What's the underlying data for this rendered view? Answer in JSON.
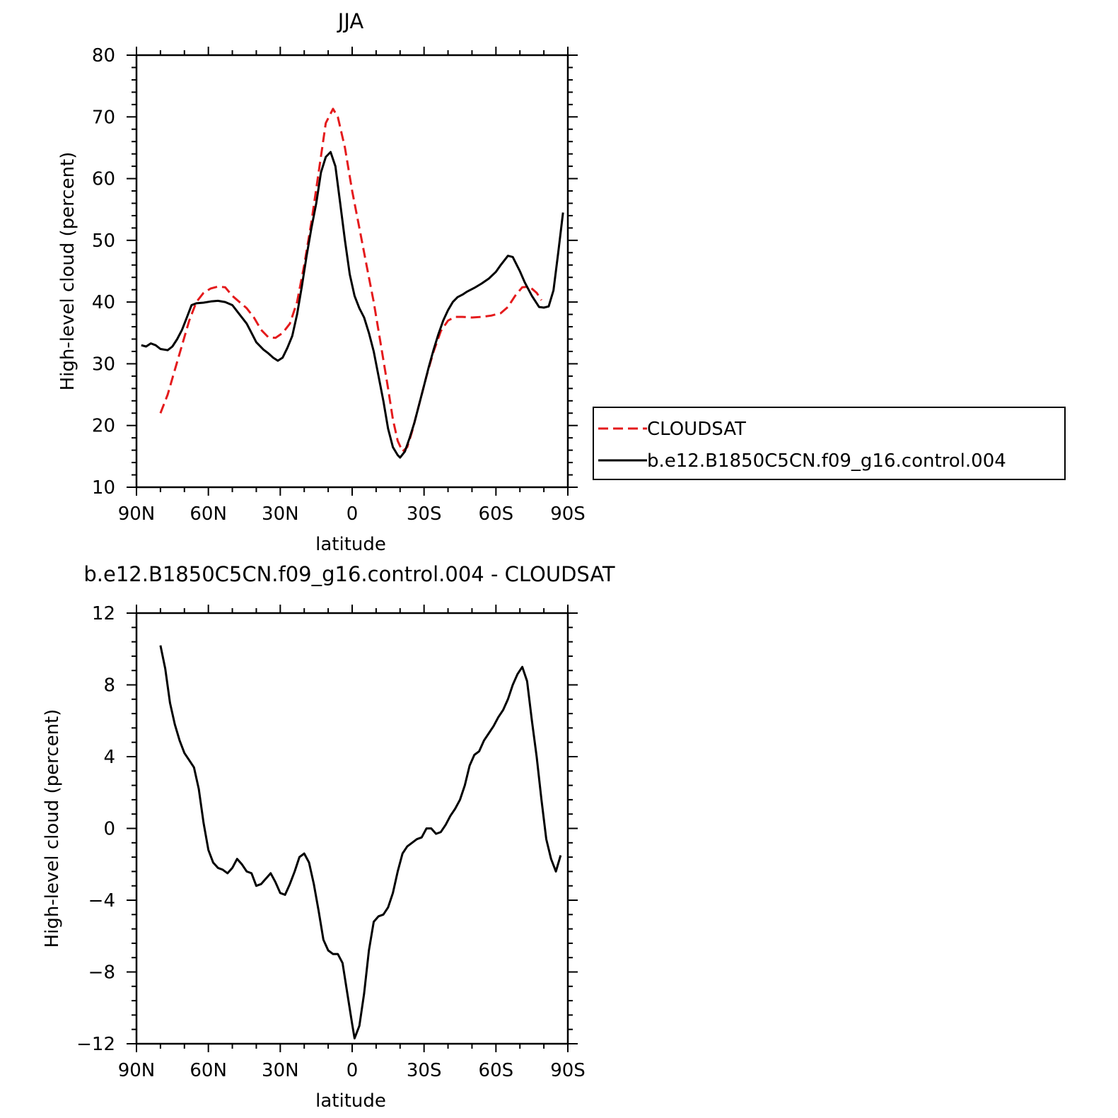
{
  "chart_data": [
    {
      "type": "line",
      "title": "JJA",
      "xlabel": "latitude",
      "ylabel": "High-level cloud (percent)",
      "xlim": [
        -90,
        90
      ],
      "ylim": [
        10,
        80
      ],
      "xticks": [
        {
          "value": -90,
          "label": "90N"
        },
        {
          "value": -60,
          "label": "60N"
        },
        {
          "value": -30,
          "label": "30N"
        },
        {
          "value": 0,
          "label": "0"
        },
        {
          "value": 30,
          "label": "30S"
        },
        {
          "value": 60,
          "label": "60S"
        },
        {
          "value": 90,
          "label": "90S"
        }
      ],
      "yticks": [
        10,
        20,
        30,
        40,
        50,
        60,
        70,
        80
      ],
      "legend_position": "right",
      "series": [
        {
          "name": "CLOUDSAT",
          "color": "#e41a1c",
          "dash": "dashed",
          "points": [
            [
              -80,
              22
            ],
            [
              -77,
              25
            ],
            [
              -74,
              29
            ],
            [
              -71,
              33
            ],
            [
              -68,
              37
            ],
            [
              -65,
              40
            ],
            [
              -62,
              41.5
            ],
            [
              -59,
              42.2
            ],
            [
              -56,
              42.5
            ],
            [
              -53,
              42.4
            ],
            [
              -50,
              41
            ],
            [
              -47,
              40
            ],
            [
              -44,
              39
            ],
            [
              -41,
              37.5
            ],
            [
              -38,
              35.5
            ],
            [
              -35,
              34.3
            ],
            [
              -32,
              34.2
            ],
            [
              -29,
              35
            ],
            [
              -26,
              36.5
            ],
            [
              -23,
              40
            ],
            [
              -20,
              46
            ],
            [
              -17,
              53
            ],
            [
              -14,
              61
            ],
            [
              -11,
              69
            ],
            [
              -8,
              71.3
            ],
            [
              -6,
              70
            ],
            [
              -3,
              65
            ],
            [
              0,
              58
            ],
            [
              3,
              52
            ],
            [
              6,
              46
            ],
            [
              9,
              40
            ],
            [
              12,
              33
            ],
            [
              15,
              26
            ],
            [
              17,
              21
            ],
            [
              19,
              17.5
            ],
            [
              21,
              15.8
            ],
            [
              23,
              16.5
            ],
            [
              25,
              19
            ],
            [
              28,
              23.5
            ],
            [
              31,
              28
            ],
            [
              34,
              32
            ],
            [
              37,
              35.3
            ],
            [
              40,
              37
            ],
            [
              43,
              37.6
            ],
            [
              46,
              37.6
            ],
            [
              50,
              37.5
            ],
            [
              54,
              37.6
            ],
            [
              58,
              37.8
            ],
            [
              62,
              38.2
            ],
            [
              65,
              39.2
            ],
            [
              68,
              41
            ],
            [
              71,
              42.4
            ],
            [
              74,
              42.5
            ],
            [
              77,
              41.5
            ],
            [
              79,
              40.3
            ]
          ]
        },
        {
          "name": "b.e12.B1850C5CN.f09_g16.control.004",
          "color": "#000000",
          "dash": "solid",
          "points": [
            [
              -88,
              33
            ],
            [
              -86,
              32.8
            ],
            [
              -84,
              33.3
            ],
            [
              -82,
              33
            ],
            [
              -80,
              32.4
            ],
            [
              -77,
              32.2
            ],
            [
              -75,
              32.8
            ],
            [
              -73,
              34
            ],
            [
              -71,
              35.5
            ],
            [
              -69,
              37.5
            ],
            [
              -67,
              39.5
            ],
            [
              -65,
              39.8
            ],
            [
              -62,
              39.9
            ],
            [
              -59,
              40.1
            ],
            [
              -56,
              40.2
            ],
            [
              -53,
              40
            ],
            [
              -50,
              39.5
            ],
            [
              -47,
              38
            ],
            [
              -44,
              36.5
            ],
            [
              -42,
              35
            ],
            [
              -40,
              33.5
            ],
            [
              -37,
              32.3
            ],
            [
              -35,
              31.7
            ],
            [
              -33,
              31
            ],
            [
              -31,
              30.5
            ],
            [
              -29,
              31
            ],
            [
              -27,
              32.6
            ],
            [
              -25,
              34.5
            ],
            [
              -23,
              38
            ],
            [
              -21,
              42.5
            ],
            [
              -19,
              47.5
            ],
            [
              -17,
              52
            ],
            [
              -15,
              56
            ],
            [
              -13,
              61
            ],
            [
              -11,
              63.5
            ],
            [
              -9,
              64.3
            ],
            [
              -7,
              62
            ],
            [
              -5,
              56
            ],
            [
              -3,
              50
            ],
            [
              -1,
              44.5
            ],
            [
              1,
              41
            ],
            [
              3,
              39
            ],
            [
              5,
              37.5
            ],
            [
              7,
              35
            ],
            [
              9,
              32
            ],
            [
              11,
              28
            ],
            [
              13,
              24
            ],
            [
              15,
              19.5
            ],
            [
              17,
              16.5
            ],
            [
              19,
              15.2
            ],
            [
              20,
              14.8
            ],
            [
              22,
              15.8
            ],
            [
              24,
              18
            ],
            [
              26,
              20.5
            ],
            [
              28,
              23.5
            ],
            [
              30,
              26.5
            ],
            [
              32,
              29.5
            ],
            [
              34,
              32.3
            ],
            [
              36,
              34.8
            ],
            [
              38,
              37
            ],
            [
              40,
              38.7
            ],
            [
              42,
              40
            ],
            [
              44,
              40.8
            ],
            [
              46,
              41.2
            ],
            [
              48,
              41.7
            ],
            [
              51,
              42.3
            ],
            [
              54,
              43
            ],
            [
              57,
              43.8
            ],
            [
              60,
              44.9
            ],
            [
              62,
              46
            ],
            [
              65,
              47.5
            ],
            [
              67,
              47.3
            ],
            [
              70,
              45
            ],
            [
              72,
              43.2
            ],
            [
              75,
              41
            ],
            [
              78,
              39.2
            ],
            [
              80,
              39.1
            ],
            [
              82,
              39.3
            ],
            [
              84,
              41.9
            ],
            [
              86,
              48
            ],
            [
              88,
              54.5
            ]
          ]
        }
      ]
    },
    {
      "type": "line",
      "title": "b.e12.B1850C5CN.f09_g16.control.004 - CLOUDSAT",
      "xlabel": "latitude",
      "ylabel": "High-level cloud (percent)",
      "xlim": [
        -90,
        90
      ],
      "ylim": [
        -12,
        12
      ],
      "xticks": [
        {
          "value": -90,
          "label": "90N"
        },
        {
          "value": -60,
          "label": "60N"
        },
        {
          "value": -30,
          "label": "30N"
        },
        {
          "value": 0,
          "label": "0"
        },
        {
          "value": 30,
          "label": "30S"
        },
        {
          "value": 60,
          "label": "60S"
        },
        {
          "value": 90,
          "label": "90S"
        }
      ],
      "yticks": [
        -12,
        -8,
        -4,
        0,
        4,
        8,
        12
      ],
      "series": [
        {
          "color": "#000000",
          "dash": "solid",
          "points": [
            [
              -80,
              10.2
            ],
            [
              -78,
              8.9
            ],
            [
              -76,
              7
            ],
            [
              -74,
              5.8
            ],
            [
              -72,
              4.9
            ],
            [
              -70,
              4.2
            ],
            [
              -68,
              3.8
            ],
            [
              -66,
              3.4
            ],
            [
              -64,
              2.2
            ],
            [
              -62,
              0.3
            ],
            [
              -60,
              -1.2
            ],
            [
              -58,
              -1.9
            ],
            [
              -56,
              -2.2
            ],
            [
              -54,
              -2.3
            ],
            [
              -52,
              -2.5
            ],
            [
              -50,
              -2.2
            ],
            [
              -48,
              -1.7
            ],
            [
              -46,
              -2
            ],
            [
              -44,
              -2.4
            ],
            [
              -42,
              -2.5
            ],
            [
              -40,
              -3.2
            ],
            [
              -38,
              -3.1
            ],
            [
              -36,
              -2.8
            ],
            [
              -34,
              -2.5
            ],
            [
              -32,
              -3
            ],
            [
              -30,
              -3.6
            ],
            [
              -28,
              -3.7
            ],
            [
              -26,
              -3.1
            ],
            [
              -24,
              -2.4
            ],
            [
              -22,
              -1.6
            ],
            [
              -20,
              -1.4
            ],
            [
              -18,
              -1.9
            ],
            [
              -16,
              -3.1
            ],
            [
              -14,
              -4.6
            ],
            [
              -12,
              -6.2
            ],
            [
              -10,
              -6.8
            ],
            [
              -8,
              -7
            ],
            [
              -6,
              -7
            ],
            [
              -4,
              -7.5
            ],
            [
              -2,
              -9.2
            ],
            [
              0,
              -10.9
            ],
            [
              1,
              -11.7
            ],
            [
              3,
              -11
            ],
            [
              5,
              -9.2
            ],
            [
              7,
              -6.8
            ],
            [
              9,
              -5.2
            ],
            [
              11,
              -4.9
            ],
            [
              13,
              -4.8
            ],
            [
              15,
              -4.4
            ],
            [
              17,
              -3.6
            ],
            [
              19,
              -2.4
            ],
            [
              21,
              -1.4
            ],
            [
              23,
              -1
            ],
            [
              25,
              -0.8
            ],
            [
              27,
              -0.6
            ],
            [
              29,
              -0.5
            ],
            [
              31,
              0
            ],
            [
              33,
              0
            ],
            [
              35,
              -0.3
            ],
            [
              37,
              -0.2
            ],
            [
              39,
              0.2
            ],
            [
              41,
              0.7
            ],
            [
              43,
              1.1
            ],
            [
              45,
              1.6
            ],
            [
              47,
              2.4
            ],
            [
              49,
              3.5
            ],
            [
              51,
              4.1
            ],
            [
              53,
              4.3
            ],
            [
              55,
              4.9
            ],
            [
              57,
              5.3
            ],
            [
              59,
              5.7
            ],
            [
              61,
              6.2
            ],
            [
              63,
              6.6
            ],
            [
              65,
              7.2
            ],
            [
              67,
              8
            ],
            [
              69,
              8.6
            ],
            [
              71,
              9
            ],
            [
              73,
              8.2
            ],
            [
              75,
              6
            ],
            [
              77,
              4
            ],
            [
              79,
              1.6
            ],
            [
              81,
              -0.6
            ],
            [
              83,
              -1.7
            ],
            [
              85,
              -2.4
            ],
            [
              87,
              -1.5
            ]
          ]
        }
      ]
    }
  ]
}
